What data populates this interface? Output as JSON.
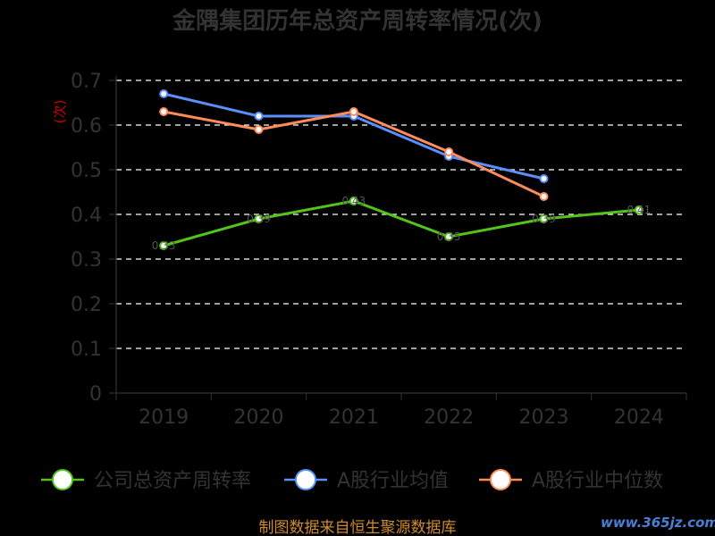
{
  "title": "金隅集团历年总资产周转率情况(次)",
  "source": "制图数据来自恒生聚源数据库",
  "watermark": "www.365jz.com",
  "chart_data": {
    "type": "line",
    "title": "金隅集团历年总资产周转率情况(次)",
    "xlabel": "",
    "ylabel": "(次)",
    "categories": [
      "2019",
      "2020",
      "2021",
      "2022",
      "2023",
      "2024"
    ],
    "ylim": [
      0,
      0.7
    ],
    "yticks": [
      "0",
      "0.1",
      "0.2",
      "0.3",
      "0.4",
      "0.5",
      "0.6",
      "0.7"
    ],
    "grid": true,
    "legend_position": "bottom",
    "series": [
      {
        "name": "公司总资产周转率",
        "color": "#52c41a",
        "values": [
          0.33,
          0.39,
          0.43,
          0.35,
          0.39,
          0.41
        ],
        "labels": [
          "0.33",
          "0.39",
          "0.43",
          "0.35",
          "0.39",
          "0.41"
        ]
      },
      {
        "name": "A股行业均值",
        "color": "#5b8ff9",
        "values": [
          0.67,
          0.62,
          0.62,
          0.53,
          0.48,
          null
        ],
        "labels": []
      },
      {
        "name": "A股行业中位数",
        "color": "#ff8c5a",
        "values": [
          0.63,
          0.59,
          0.63,
          0.54,
          0.44,
          null
        ],
        "labels": []
      }
    ]
  }
}
